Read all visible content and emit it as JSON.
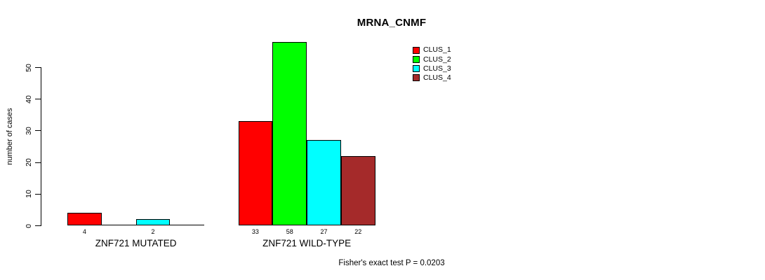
{
  "title": "MRNA_CNMF",
  "ylabel": "number of cases",
  "footer": "Fisher's exact test P = 0.0203",
  "legend": {
    "items": [
      {
        "label": "CLUS_1",
        "color": "#FF0000"
      },
      {
        "label": "CLUS_2",
        "color": "#00FF00"
      },
      {
        "label": "CLUS_3",
        "color": "#00FFFF"
      },
      {
        "label": "CLUS_4",
        "color": "#A52A2A"
      }
    ]
  },
  "chart_data": {
    "type": "bar",
    "title": "MRNA_CNMF",
    "xlabel": "",
    "ylabel": "number of cases",
    "ylim": [
      0,
      58
    ],
    "yticks": [
      0,
      10,
      20,
      30,
      40,
      50
    ],
    "grid": false,
    "legend_position": "top-right-inside",
    "categories": [
      "ZNF721 MUTATED",
      "ZNF721 WILD-TYPE"
    ],
    "series": [
      {
        "name": "CLUS_1",
        "color": "#FF0000",
        "values": [
          4,
          33
        ]
      },
      {
        "name": "CLUS_2",
        "color": "#00FF00",
        "values": [
          0,
          58
        ]
      },
      {
        "name": "CLUS_3",
        "color": "#00FFFF",
        "values": [
          2,
          27
        ]
      },
      {
        "name": "CLUS_4",
        "color": "#A52A2A",
        "values": [
          0,
          22
        ]
      }
    ],
    "bar_value_labels": [
      [
        "4",
        "",
        "2",
        ""
      ],
      [
        "33",
        "58",
        "27",
        "22"
      ]
    ],
    "annotation": "Fisher's exact test P = 0.0203"
  }
}
